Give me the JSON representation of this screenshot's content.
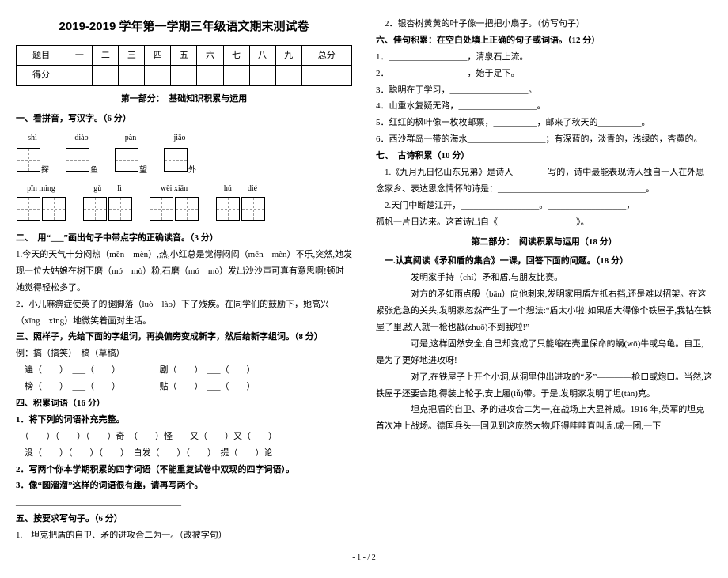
{
  "title": "2019-2019 学年第一学期三年级语文期末测试卷",
  "score_table": {
    "row1": [
      "题目",
      "一",
      "二",
      "三",
      "四",
      "五",
      "六",
      "七",
      "八",
      "九",
      "总分"
    ],
    "row2_label": "得分"
  },
  "part1_label": "第一部分：　基础知识积累与运用",
  "q1": {
    "heading": "一、看拼音，写汉字。（6 分）",
    "top": [
      "shì",
      "diào",
      "pàn",
      "jiāo"
    ],
    "mid": [
      "探",
      "鱼",
      "望",
      "外"
    ],
    "bot_left": "pīn  mìng",
    "bot_mid": "gǔ　　lì",
    "bot_mid2": "wēi  xiǎn",
    "bot_right": "hú　　dié"
  },
  "q2": {
    "heading": "二、　用“___”画出句子中带点字的正确读音。（3 分）",
    "l1": "1.今天的天气十分闷热（mēn　mèn）,热,小红总是觉得闷闷（mēn　mèn）不乐,突然,她发现一位大姑娘在树下磨（mó　mò）粉,石磨（mó　mò）发出沙沙声可真有意思啊!顿时她觉得轻松多了。",
    "l2": "2．小儿麻痹症使英子的腿脚落（luò　lào）下了残疾。在同学们的鼓励下，她高兴（xīng　xìng）地微笑着面对生活。"
  },
  "q3": {
    "heading": "三、照样子，先给下面的字组词，再换偏旁变成新字，然后给新字组词。（8 分）",
    "example": "例：搞（搞笑）　稿（草稿）",
    "l1": "　遍（　　）　___（　　）　　　　　剧（　　）　___（　　）",
    "l2": "　榜（　　）　___（　　）　　　　　贴（　　）　___（　　）"
  },
  "q4": {
    "heading": "四、积累词语（16 分）",
    "s1": "1．将下列的词语补充完整。",
    "l1": "　（　　）（　　）（　　）奇　（　　）怪　　又（　　）又（　　）",
    "l2": "　没（　　）（　　）（　　）　白发（　　）（　　）　提（　　）论",
    "s2": "2．写两个你本学期积累的四字词语（不能重复试卷中双现的四字词语）。",
    "s3": "3．像“圆溜溜”这样的词语很有趣，请再写两个。",
    "blank": "______________________________________"
  },
  "q5": {
    "heading": "五、按要求写句子。（6 分）",
    "l1": "1.　坦克把盾的自卫、矛的进攻合二为一。（改被字句）"
  },
  "right": {
    "l0": "　2．银杏树黄黄的叶子像一把把小扇子。（仿写句子）",
    "q6h": "六、佳句积累：在空白处填上正确的句子或词语。（12 分）",
    "l1": "1．__________________，清泉石上流。",
    "l2": "2．__________________，始于足下。",
    "l3": "3．聪明在于学习，__________________。",
    "l4": "4．山重水复疑无路，__________________。",
    "l5": "5．红红的枫叶像一枚枚邮票，__________，邮来了秋天的__________。",
    "l6": "6．西沙群岛一带的海水__________________；有深蓝的，淡青的，浅绿的，杏黄的。",
    "q7h": "七、　古诗积累（10 分）",
    "p7a": "　1.《九月九日忆山东兄弟》是诗人________写的，诗中最能表现诗人独自一人在外思念家乡、表达思念情怀的诗是：__________________________________。",
    "p7b": "　2.天门中断楚江开，__________________。__________________，",
    "p7c": "孤帆一片日边来。这首诗出自《　　　　　　　　　》。",
    "part2": "第二部分：　阅读积累与运用（18 分）",
    "p2h": "　一.认真阅读《矛和盾的集合》一课，回答下面的问题。（18 分）",
    "p2l1": "　　　　发明家手持（chí）矛和盾,与朋友比赛。",
    "p2l2": "　　对方的矛如雨点般（bān）向他刺来,发明家用盾左抵右挡,还是难以招架。在这紧张危急的关头,发明家忽然产生了一个想法:“盾太小啦!如果盾大得像个铁屋子,我钻在铁屋子里,敌人就一枪也戳(zhuō)不到我啦!”",
    "p2l3": "　　可是,这样固然安全,自己却变成了只能缩在壳里保命的蜗(wō)牛或乌龟。自卫,是为了更好地进攻呀!",
    "p2l4": "　　对了,在铁屋子上开个小洞,从洞里伸出进攻的“矛”————枪口或炮口。当然,这铁屋子还要会跑,得装上轮子,安上履(lǚ)带。于是,发明家发明了坦(tǎn)克。",
    "p2l5": "　　坦克把盾的自卫、矛的进攻合二为一,在战场上大显神威。1916 年,英军的坦克首次冲上战场。德国兵头一回见到这庞然大物,吓得哇哇直叫,乱成一团,一下"
  },
  "footer": "- 1 -  / 2"
}
